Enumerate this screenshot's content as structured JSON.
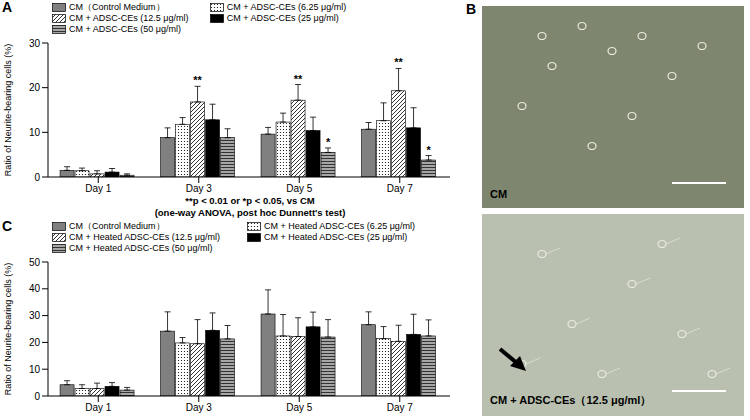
{
  "chart_data": [
    {
      "panel_label": "A",
      "type": "bar",
      "y_label": "Ratio of Neurite-bearing cells (%)",
      "categories": [
        "Day 1",
        "Day 3",
        "Day 5",
        "Day 7"
      ],
      "series": [
        {
          "name": "CM（Control Medium）",
          "color": "#808080",
          "values": [
            1.5,
            8.8,
            9.6,
            10.7
          ],
          "errors": [
            0.8,
            2.2,
            1.5,
            1.5
          ]
        },
        {
          "name": "CM + ADSC-CEs (6.25 μg/ml)",
          "color": "#ffffff",
          "values": [
            1.4,
            11.8,
            12.3,
            12.6
          ],
          "errors": [
            0.6,
            1.5,
            2.0,
            4.0
          ]
        },
        {
          "name": "CM + ADSC-CEs (12.5 μg/ml)",
          "color": "#ffffff",
          "values": [
            0.7,
            16.8,
            17.2,
            19.3
          ],
          "errors": [
            0.7,
            3.5,
            3.5,
            5.0
          ]
        },
        {
          "name": "CM + ADSC-CEs (25 μg/ml)",
          "color": "#000000",
          "values": [
            1.1,
            12.8,
            10.4,
            11.0
          ],
          "errors": [
            0.8,
            3.5,
            3.0,
            4.5
          ]
        },
        {
          "name": "CM + ADSC-CEs (50 μg/ml)",
          "color": "#a6a6a6",
          "values": [
            0.4,
            8.8,
            5.5,
            3.8
          ],
          "errors": [
            0.3,
            2.0,
            1.0,
            1.0
          ]
        }
      ],
      "ylim": [
        0,
        30
      ],
      "yticks": [
        0,
        10,
        20,
        30
      ],
      "grid": false,
      "legend": "top",
      "annotations": [
        {
          "series": "CM + ADSC-CEs (12.5 μg/ml)",
          "category": "Day 3",
          "text": "**"
        },
        {
          "series": "CM + ADSC-CEs (12.5 μg/ml)",
          "category": "Day 5",
          "text": "**"
        },
        {
          "series": "CM + ADSC-CEs (12.5 μg/ml)",
          "category": "Day 7",
          "text": "**"
        },
        {
          "series": "CM + ADSC-CEs (50 μg/ml)",
          "category": "Day 5",
          "text": "*"
        },
        {
          "series": "CM + ADSC-CEs (50 μg/ml)",
          "category": "Day 7",
          "text": "*"
        }
      ],
      "footnote": [
        "**p < 0.01 or *p < 0.05, vs CM",
        "(one-way ANOVA, post hoc Dunnett's test)"
      ]
    },
    {
      "panel_label": "C",
      "type": "bar",
      "y_label": "Ratio of Neurite-bearing cells (%)",
      "categories": [
        "Day 1",
        "Day 3",
        "Day 5",
        "Day 7"
      ],
      "series": [
        {
          "name": "CM（Control Medium）",
          "color": "#808080",
          "values": [
            4.2,
            24.2,
            30.6,
            26.6
          ],
          "errors": [
            1.5,
            7.2,
            9.0,
            4.8
          ]
        },
        {
          "name": "CM + Heated ADSC-CEs (6.25 μg/ml)",
          "color": "#ffffff",
          "values": [
            2.8,
            19.8,
            22.4,
            21.4
          ],
          "errors": [
            1.4,
            2.0,
            8.0,
            4.5
          ]
        },
        {
          "name": "CM + Heated ADSC-CEs (12.5 μg/ml)",
          "color": "#ffffff",
          "values": [
            2.8,
            19.5,
            22.2,
            20.4
          ],
          "errors": [
            2.0,
            9.0,
            7.0,
            6.0
          ]
        },
        {
          "name": "CM + Heated ADSC-CEs (25 μg/ml)",
          "color": "#000000",
          "values": [
            3.6,
            24.5,
            25.8,
            23.0
          ],
          "errors": [
            1.4,
            6.5,
            5.5,
            7.5
          ]
        },
        {
          "name": "CM + Heated ADSC-CEs (50 μg/ml)",
          "color": "#a6a6a6",
          "values": [
            2.2,
            21.3,
            22.0,
            22.4
          ],
          "errors": [
            1.0,
            5.0,
            6.5,
            6.0
          ]
        }
      ],
      "ylim": [
        0,
        50
      ],
      "yticks": [
        0,
        10,
        20,
        30,
        40,
        50
      ],
      "grid": false,
      "legend": "top"
    }
  ],
  "images": {
    "panel_label": "B",
    "labels": [
      "CM",
      "CM + ADSC-CEs（12.5 μg/ml）"
    ]
  }
}
